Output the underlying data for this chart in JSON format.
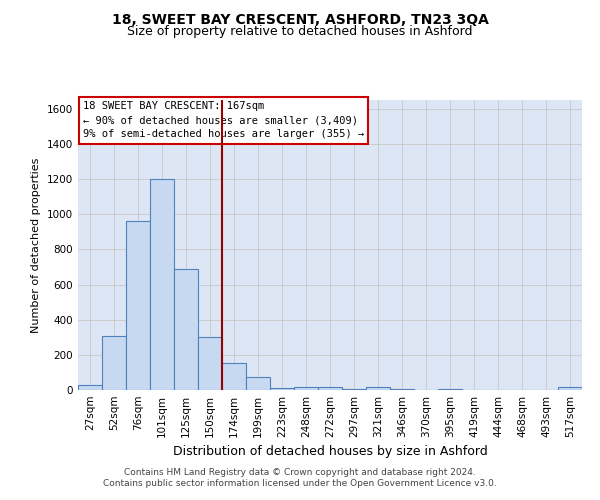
{
  "title": "18, SWEET BAY CRESCENT, ASHFORD, TN23 3QA",
  "subtitle": "Size of property relative to detached houses in Ashford",
  "xlabel": "Distribution of detached houses by size in Ashford",
  "ylabel": "Number of detached properties",
  "categories": [
    "27sqm",
    "52sqm",
    "76sqm",
    "101sqm",
    "125sqm",
    "150sqm",
    "174sqm",
    "199sqm",
    "223sqm",
    "248sqm",
    "272sqm",
    "297sqm",
    "321sqm",
    "346sqm",
    "370sqm",
    "395sqm",
    "419sqm",
    "444sqm",
    "468sqm",
    "493sqm",
    "517sqm"
  ],
  "values": [
    30,
    310,
    960,
    1200,
    690,
    300,
    155,
    75,
    10,
    15,
    15,
    5,
    15,
    5,
    0,
    5,
    0,
    0,
    0,
    0,
    15
  ],
  "bar_color": "#c6d9f1",
  "bar_edge_color": "#4f81bd",
  "red_line_x": 5.5,
  "ylim": [
    0,
    1650
  ],
  "yticks": [
    0,
    200,
    400,
    600,
    800,
    1000,
    1200,
    1400,
    1600
  ],
  "annotation_line1": "18 SWEET BAY CRESCENT: 167sqm",
  "annotation_line2": "← 90% of detached houses are smaller (3,409)",
  "annotation_line3": "9% of semi-detached houses are larger (355) →",
  "annotation_box_color": "#ffffff",
  "annotation_box_edge_color": "#cc0000",
  "grid_color": "#cccccc",
  "background_color": "#dce6f5",
  "footer_line1": "Contains HM Land Registry data © Crown copyright and database right 2024.",
  "footer_line2": "Contains public sector information licensed under the Open Government Licence v3.0.",
  "title_fontsize": 10,
  "subtitle_fontsize": 9,
  "annotation_fontsize": 7.5,
  "tick_fontsize": 7.5,
  "ylabel_fontsize": 8,
  "xlabel_fontsize": 9,
  "footer_fontsize": 6.5
}
